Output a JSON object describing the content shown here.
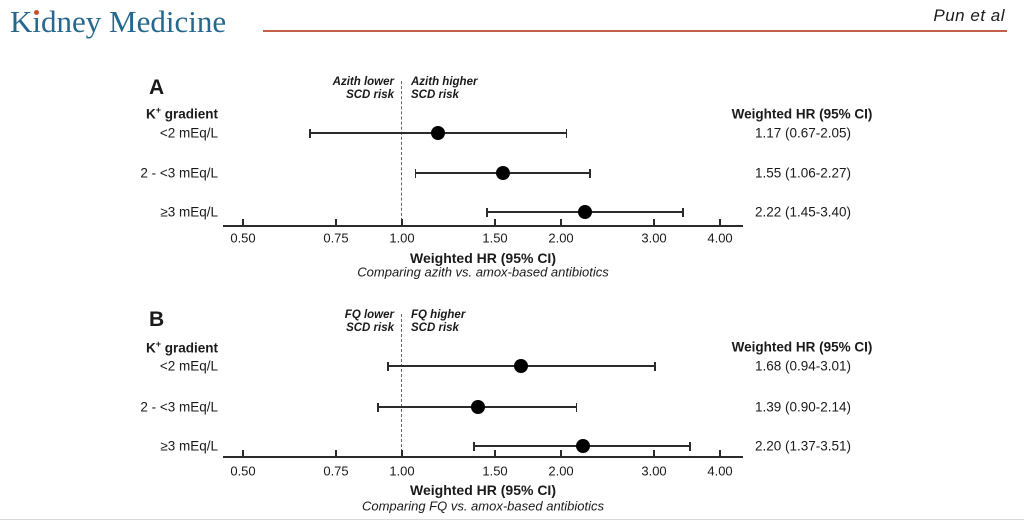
{
  "header": {
    "journal": "Kidney Medicine",
    "journal_display": {
      "k": "K",
      "i": "ı",
      "rest": "dney Medicine"
    },
    "byline": "Pun et al",
    "accent_color": "#C2604A",
    "logo_color": "#26688D",
    "logo_dot_color": "#C84F28"
  },
  "chart_data": [
    {
      "type": "forest",
      "panel": "A",
      "group_label": {
        "main": "K",
        "sup": "+",
        "tail": " gradient"
      },
      "annotation_left": [
        "Azith lower",
        "SCD risk"
      ],
      "annotation_right": [
        "Azith higher",
        "SCD risk"
      ],
      "column_header": "Weighted HR (95% CI)",
      "xlabel": "Weighted HR (95% CI)",
      "subtitle": "Comparing azith vs. amox-based antibiotics",
      "x_scale": "log",
      "reference_line": 1.0,
      "x_ticks": [
        0.5,
        0.75,
        1.0,
        1.5,
        2.0,
        3.0,
        4.0
      ],
      "x_tick_labels": [
        "0.50",
        "0.75",
        "1.00",
        "1.50",
        "2.00",
        "3.00",
        "4.00"
      ],
      "xlim": [
        0.5,
        4.0
      ],
      "rows": [
        {
          "label": "<2 mEq/L",
          "hr": 1.17,
          "ci_low": 0.67,
          "ci_high": 2.05,
          "text": "1.17 (0.67-2.05)"
        },
        {
          "label": "2 - <3 mEq/L",
          "hr": 1.55,
          "ci_low": 1.06,
          "ci_high": 2.27,
          "text": "1.55 (1.06-2.27)"
        },
        {
          "label": "≥3 mEq/L",
          "hr": 2.22,
          "ci_low": 1.45,
          "ci_high": 3.4,
          "text": "2.22 (1.45-3.40)"
        }
      ]
    },
    {
      "type": "forest",
      "panel": "B",
      "group_label": {
        "main": "K",
        "sup": "+",
        "tail": " gradient"
      },
      "annotation_left": [
        "FQ lower",
        "SCD risk"
      ],
      "annotation_right": [
        "FQ higher",
        "SCD risk"
      ],
      "column_header": "Weighted HR (95% CI)",
      "xlabel": "Weighted HR (95% CI)",
      "subtitle": "Comparing FQ vs. amox-based antibiotics",
      "x_scale": "log",
      "reference_line": 1.0,
      "x_ticks": [
        0.5,
        0.75,
        1.0,
        1.5,
        2.0,
        3.0,
        4.0
      ],
      "x_tick_labels": [
        "0.50",
        "0.75",
        "1.00",
        "1.50",
        "2.00",
        "3.00",
        "4.00"
      ],
      "xlim": [
        0.5,
        4.0
      ],
      "rows": [
        {
          "label": "<2 mEq/L",
          "hr": 1.68,
          "ci_low": 0.94,
          "ci_high": 3.01,
          "text": "1.68 (0.94-3.01)"
        },
        {
          "label": "2 - <3 mEq/L",
          "hr": 1.39,
          "ci_low": 0.9,
          "ci_high": 2.14,
          "text": "1.39 (0.90-2.14)"
        },
        {
          "label": "≥3 mEq/L",
          "hr": 2.2,
          "ci_low": 1.37,
          "ci_high": 3.51,
          "text": "2.20 (1.37-3.51)"
        }
      ]
    }
  ]
}
